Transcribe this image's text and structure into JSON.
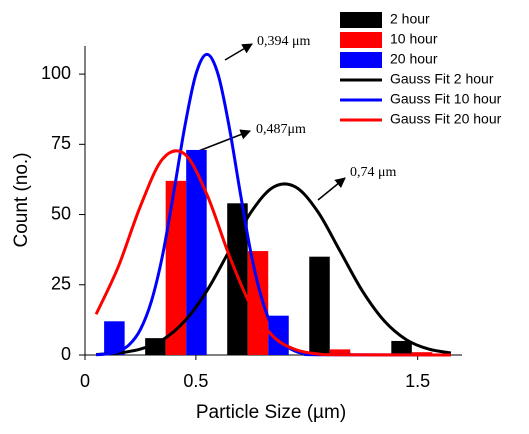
{
  "chart_data": {
    "type": "bar",
    "x": [
      0.04,
      0.41,
      0.78,
      1.15,
      1.52
    ],
    "xlim": [
      0,
      1.7
    ],
    "xticks": [
      0,
      0.5,
      1.5
    ],
    "ylim": [
      0,
      110
    ],
    "yticks": [
      0,
      25,
      50,
      75,
      100
    ],
    "x_label": "Particle Size (µm)",
    "y_label": "Count (no.)",
    "legend": "upper right",
    "series": [
      {
        "name": "2 hour",
        "type": "bar",
        "color": "#000000",
        "values": [
          0,
          6,
          54,
          35,
          5
        ]
      },
      {
        "name": "10 hour",
        "type": "bar",
        "color": "#ff0000",
        "values": [
          0,
          62,
          37,
          2,
          1
        ]
      },
      {
        "name": "20 hour",
        "type": "bar",
        "color": "#0000ff",
        "values": [
          12,
          73,
          14,
          0,
          0
        ]
      },
      {
        "name": "Gauss Fit 2 hour",
        "type": "line",
        "color": "#000000",
        "x": [
          0.05,
          0.15,
          0.25,
          0.35,
          0.45,
          0.55,
          0.65,
          0.75,
          0.85,
          0.95,
          1.05,
          1.15,
          1.25,
          1.35,
          1.45,
          1.55,
          1.65
        ],
        "values": [
          0.2,
          0.7,
          2.1,
          5.4,
          12.1,
          22.9,
          37.0,
          51.0,
          59.8,
          59.8,
          51.0,
          37.0,
          22.9,
          12.1,
          5.4,
          2.1,
          0.7
        ]
      },
      {
        "name": "Gauss Fit 10 hour",
        "type": "line",
        "color": "#0000ff",
        "x": [
          0.05,
          0.1,
          0.15,
          0.2,
          0.25,
          0.3,
          0.35,
          0.4,
          0.45,
          0.5,
          0.55,
          0.6,
          0.65,
          0.7,
          0.75,
          0.8,
          0.85,
          0.9,
          0.95,
          1.0,
          1.05,
          1.65
        ],
        "values": [
          0.1,
          0.4,
          1.3,
          3.7,
          9.1,
          19.3,
          35.6,
          57.8,
          81.3,
          99.9,
          107,
          99.9,
          81.3,
          57.8,
          35.6,
          19.3,
          9.1,
          3.7,
          1.3,
          0.4,
          0.1,
          0
        ]
      },
      {
        "name": "Gauss Fit 20 hour",
        "type": "line",
        "color": "#ff0000",
        "x": [
          0.05,
          0.15,
          0.25,
          0.35,
          0.45,
          0.55,
          0.65,
          0.75,
          0.85,
          0.95,
          1.05,
          1.15,
          1.65
        ],
        "values": [
          14.5,
          31.4,
          53.0,
          69.8,
          71.5,
          57.1,
          35.5,
          17.2,
          6.5,
          1.9,
          0.4,
          0.1,
          0
        ]
      }
    ],
    "annotations": [
      "0,394 μm",
      "0,487μm",
      "0,74 μm"
    ]
  }
}
